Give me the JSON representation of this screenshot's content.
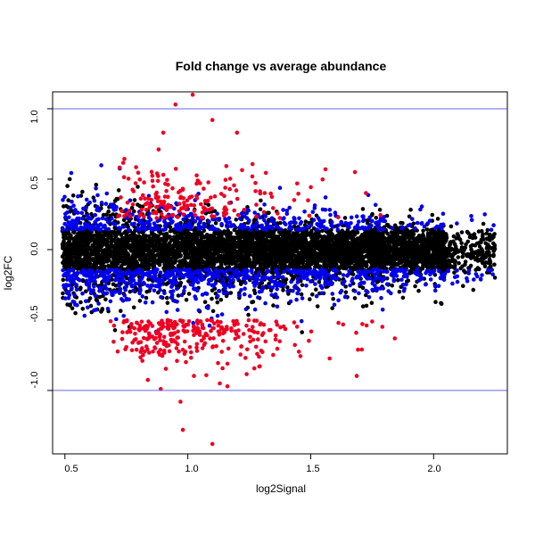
{
  "chart_data": {
    "type": "scatter",
    "title": "Fold change vs average abundance",
    "xlabel": "log2Signal",
    "ylabel": "log2FC",
    "xlim": [
      0.45,
      2.3
    ],
    "ylim": [
      -1.45,
      1.12
    ],
    "xticks": [
      "0.5",
      "1.0",
      "1.5",
      "2.0"
    ],
    "yticks": [
      "-1.0",
      "-0.5",
      "0.0",
      "0.5",
      "1.0"
    ],
    "hlines": [
      -1.0,
      1.0
    ],
    "hline_color": "#6666ee",
    "series_colors": [
      "#000000",
      "#0000ee",
      "#ee0022"
    ],
    "grid": false,
    "legend": "none"
  }
}
